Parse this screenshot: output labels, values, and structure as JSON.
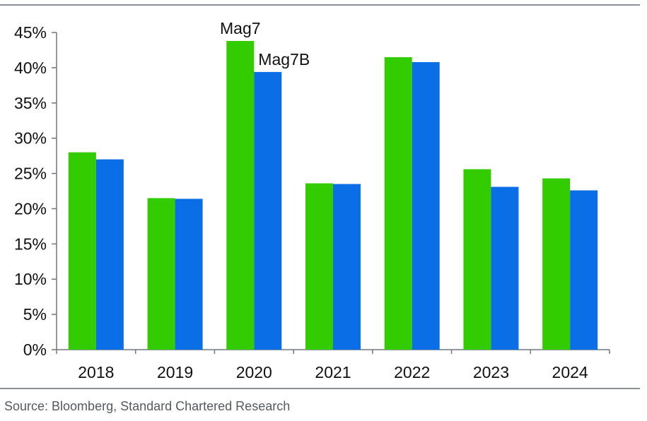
{
  "chart_data": {
    "type": "bar",
    "categories": [
      "2018",
      "2019",
      "2020",
      "2021",
      "2022",
      "2023",
      "2024"
    ],
    "series": [
      {
        "name": "Mag7",
        "color": "#33cc00",
        "values": [
          28.0,
          21.5,
          43.8,
          23.6,
          41.5,
          25.6,
          24.3
        ]
      },
      {
        "name": "Mag7B",
        "color": "#0a6ee6",
        "values": [
          27.0,
          21.4,
          39.4,
          23.5,
          40.8,
          23.1,
          22.6
        ]
      }
    ],
    "ylim": [
      0,
      45
    ],
    "yticks": [
      "0%",
      "5%",
      "10%",
      "15%",
      "20%",
      "25%",
      "30%",
      "35%",
      "40%",
      "45%"
    ],
    "ytick_values": [
      0,
      5,
      10,
      15,
      20,
      25,
      30,
      35,
      40,
      45
    ],
    "series_labels_shown_at": "2020",
    "grid": false,
    "title": "",
    "xlabel": "",
    "ylabel": ""
  },
  "footer": {
    "source": "Source: Bloomberg, Standard Chartered Research"
  }
}
